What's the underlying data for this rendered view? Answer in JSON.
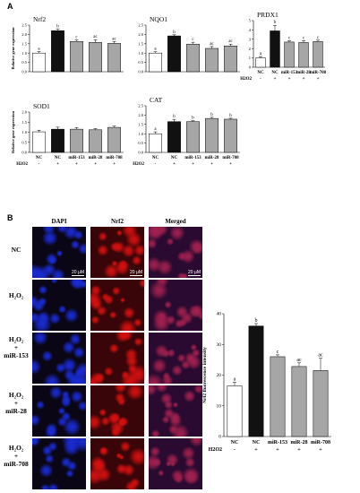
{
  "panel_a_label": "A",
  "panel_b_label": "B",
  "fig_labels": {
    "h2o2_row": "H2O2",
    "h2o2_row_b": "H2O2"
  },
  "micrograph": {
    "columns": [
      "DAPI",
      "Nrf2",
      "Merged"
    ],
    "rows": [
      {
        "lines": [
          "NC"
        ]
      },
      {
        "lines": [
          "H₂O₂"
        ]
      },
      {
        "lines": [
          "H₂O₂",
          "+",
          "miR-153"
        ]
      },
      {
        "lines": [
          "H₂O₂",
          "+",
          "miR-28"
        ]
      },
      {
        "lines": [
          "H₂O₂",
          "+",
          "miR-708"
        ]
      }
    ],
    "scale_label": "20 μM",
    "colors": {
      "dapi": "#1a2bd6",
      "nrf2": "#d41010",
      "merged": "#a0204e"
    }
  },
  "chart_data": [
    {
      "type": "bar",
      "title": "Nrf2",
      "ylabel": "Relative gene expression",
      "categories": [
        "NC",
        "NC",
        "miR-153",
        "miR-28",
        "miR-708"
      ],
      "values": [
        1.0,
        2.2,
        1.62,
        1.57,
        1.52
      ],
      "errors": [
        0.08,
        0.08,
        0.08,
        0.15,
        0.1
      ],
      "letters": [
        "a",
        "b",
        "c",
        "ac",
        "ac"
      ],
      "ylim": [
        0,
        2.5
      ],
      "yticks": [
        "0.0",
        "0.5",
        "1.0",
        "1.5",
        "2.0",
        "2.5"
      ],
      "show_xlabels": false
    },
    {
      "type": "bar",
      "title": "NQO1",
      "ylabel": "",
      "categories": [
        "NC",
        "NC",
        "miR-153",
        "miR-28",
        "miR-708"
      ],
      "values": [
        1.0,
        1.92,
        1.48,
        1.25,
        1.38
      ],
      "errors": [
        0.07,
        0.06,
        0.1,
        0.1,
        0.1
      ],
      "letters": [
        "a",
        "b",
        "c",
        "ac",
        "ac"
      ],
      "ylim": [
        0,
        2.5
      ],
      "yticks": [
        "0.0",
        "0.5",
        "1.0",
        "1.5",
        "2.0",
        "2.5"
      ],
      "show_xlabels": false
    },
    {
      "type": "bar",
      "title": "PRDX1",
      "ylabel": "",
      "categories": [
        "NC",
        "NC",
        "miR-153",
        "miR-28",
        "miR-708"
      ],
      "values": [
        1.0,
        3.9,
        2.7,
        2.65,
        2.75
      ],
      "errors": [
        0.15,
        0.6,
        0.15,
        0.2,
        0.15
      ],
      "letters": [
        "a",
        "b",
        "c",
        "c",
        "c"
      ],
      "ylim": [
        0,
        5
      ],
      "yticks": [
        "0",
        "1",
        "2",
        "3",
        "4",
        "5"
      ],
      "show_xlabels": true,
      "h2o2_label": "H2O2",
      "h2o2_marks": [
        "-",
        "+",
        "+",
        "+",
        "+"
      ]
    },
    {
      "type": "bar",
      "title": "SOD1",
      "ylabel": "Relative gene expression",
      "categories": [
        "NC",
        "NC",
        "miR-153",
        "miR-28",
        "miR-708"
      ],
      "values": [
        1.02,
        1.15,
        1.15,
        1.12,
        1.24
      ],
      "errors": [
        0.08,
        0.1,
        0.08,
        0.06,
        0.06
      ],
      "letters": [
        "",
        "",
        "",
        "",
        ""
      ],
      "ylim": [
        0,
        2.0
      ],
      "yticks": [
        "0.0",
        "0.5",
        "1.0",
        "1.5",
        "2.0"
      ],
      "show_xlabels": true,
      "h2o2_label": "H2O2",
      "h2o2_marks": [
        "-",
        "+",
        "+",
        "+",
        "+"
      ]
    },
    {
      "type": "bar",
      "title": "CAT",
      "ylabel": "",
      "categories": [
        "NC",
        "NC",
        "miR-153",
        "miR-28",
        "miR-708"
      ],
      "values": [
        1.0,
        1.65,
        1.65,
        1.82,
        1.78
      ],
      "errors": [
        0.1,
        0.12,
        0.05,
        0.06,
        0.05
      ],
      "letters": [
        "a",
        "b",
        "b",
        "b",
        "b"
      ],
      "ylim": [
        0,
        2.5
      ],
      "yticks": [
        "0.0",
        "0.5",
        "1.0",
        "1.5",
        "2.0",
        "2.5"
      ],
      "show_xlabels": true,
      "h2o2_label": "H2O2",
      "h2o2_marks": [
        "-",
        "+",
        "+",
        "+",
        "+"
      ]
    },
    {
      "type": "bar",
      "title": "",
      "ylabel": "Nrf2 fluorescence intensity",
      "categories": [
        "NC",
        "NC",
        "miR-153",
        "miR-28",
        "miR-708"
      ],
      "values": [
        16.5,
        36.0,
        26.0,
        22.8,
        21.5
      ],
      "errors": [
        1.2,
        0.8,
        0.6,
        1.2,
        4.0
      ],
      "letters": [
        "a",
        "b",
        "c",
        "ac",
        "ac"
      ],
      "ylim": [
        0,
        40
      ],
      "yticks": [
        "0",
        "10",
        "20",
        "30",
        "40"
      ],
      "show_xlabels": true,
      "h2o2_label": "H2O2",
      "h2o2_marks": [
        "-",
        "+",
        "+",
        "+",
        "+"
      ]
    }
  ]
}
